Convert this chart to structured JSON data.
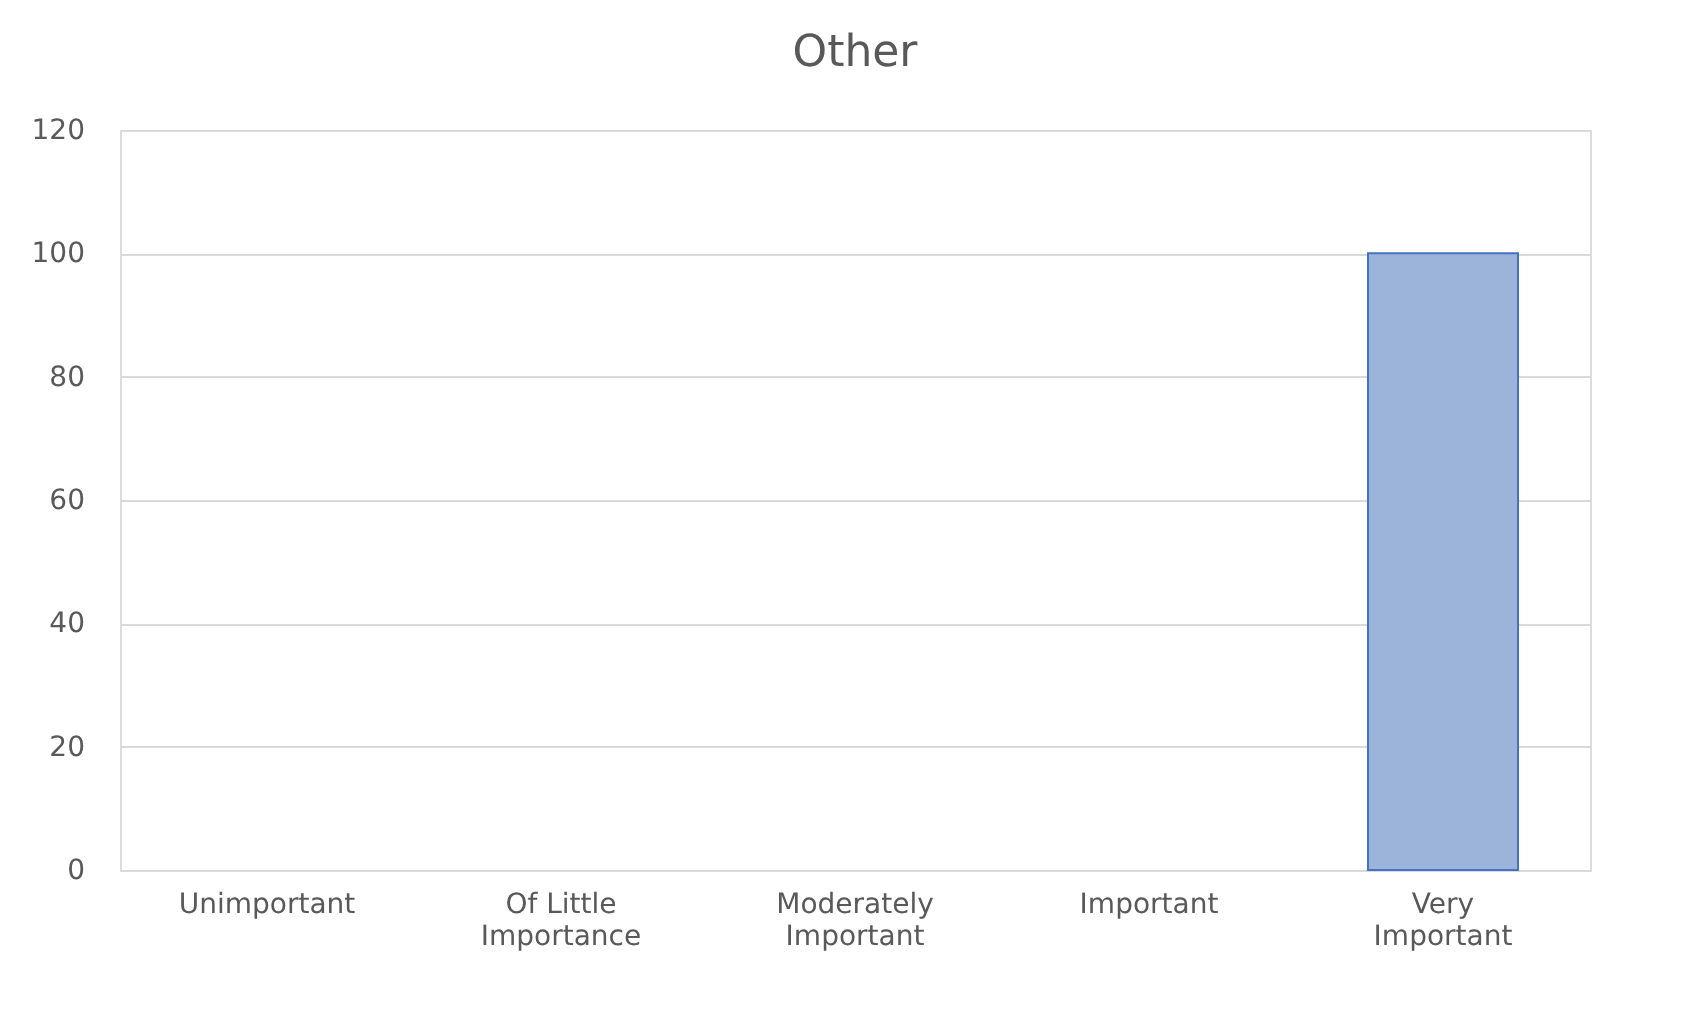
{
  "chart_data": {
    "type": "bar",
    "title": "Other",
    "categories": [
      "Unimportant",
      "Of Little Importance",
      "Moderately Important",
      "Important",
      "Very Important"
    ],
    "values": [
      0,
      0,
      0,
      0,
      100
    ],
    "color": "#9db4da",
    "ylim": [
      0,
      120
    ],
    "yticks": [
      0,
      20,
      40,
      60,
      80,
      100,
      120
    ],
    "grid": "y"
  }
}
